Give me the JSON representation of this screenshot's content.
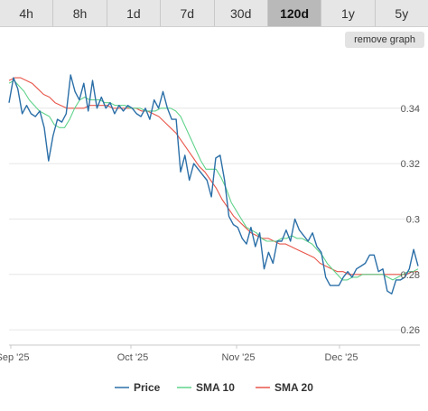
{
  "tabs": [
    {
      "label": "4h"
    },
    {
      "label": "8h"
    },
    {
      "label": "1d"
    },
    {
      "label": "7d"
    },
    {
      "label": "30d"
    },
    {
      "label": "120d"
    },
    {
      "label": "1y"
    },
    {
      "label": "5y"
    }
  ],
  "active_tab": "120d",
  "remove_graph_label": "remove graph",
  "chart_data": {
    "type": "line",
    "x_ticks": [
      "Sep '25",
      "Oct '25",
      "Nov '25",
      "Dec '25"
    ],
    "y_ticks": [
      "0.34",
      "0.32",
      "0.3",
      "0.28",
      "0.26"
    ],
    "ylim": [
      0.2545,
      0.3595
    ],
    "grid": true,
    "legend_position": "bottom",
    "colors": {
      "price": "#2b6fa8",
      "sma10": "#5fd28a",
      "sma20": "#e8564a"
    },
    "series": [
      {
        "name": "Price",
        "values": [
          0.342,
          0.351,
          0.347,
          0.338,
          0.341,
          0.338,
          0.337,
          0.339,
          0.333,
          0.321,
          0.33,
          0.336,
          0.335,
          0.338,
          0.352,
          0.346,
          0.343,
          0.349,
          0.339,
          0.35,
          0.34,
          0.344,
          0.34,
          0.342,
          0.338,
          0.341,
          0.339,
          0.341,
          0.34,
          0.338,
          0.337,
          0.34,
          0.336,
          0.343,
          0.34,
          0.346,
          0.34,
          0.336,
          0.336,
          0.317,
          0.323,
          0.314,
          0.32,
          0.318,
          0.316,
          0.314,
          0.308,
          0.322,
          0.323,
          0.314,
          0.301,
          0.298,
          0.297,
          0.293,
          0.291,
          0.297,
          0.29,
          0.295,
          0.282,
          0.288,
          0.284,
          0.292,
          0.292,
          0.296,
          0.292,
          0.3,
          0.296,
          0.294,
          0.292,
          0.295,
          0.29,
          0.288,
          0.279,
          0.276,
          0.276,
          0.276,
          0.279,
          0.281,
          0.279,
          0.282,
          0.283,
          0.284,
          0.287,
          0.287,
          0.281,
          0.282,
          0.274,
          0.273,
          0.278,
          0.278,
          0.279,
          0.282,
          0.289,
          0.283
        ]
      },
      {
        "name": "SMA 10",
        "values": [
          0.349,
          0.35,
          0.348,
          0.346,
          0.343,
          0.341,
          0.339,
          0.338,
          0.337,
          0.334,
          0.333,
          0.333,
          0.336,
          0.34,
          0.343,
          0.344,
          0.343,
          0.343,
          0.343,
          0.342,
          0.342,
          0.341,
          0.341,
          0.341,
          0.34,
          0.34,
          0.34,
          0.339,
          0.339,
          0.339,
          0.34,
          0.34,
          0.34,
          0.339,
          0.337,
          0.333,
          0.329,
          0.325,
          0.321,
          0.318,
          0.318,
          0.318,
          0.315,
          0.311,
          0.306,
          0.303,
          0.3,
          0.297,
          0.296,
          0.295,
          0.293,
          0.292,
          0.292,
          0.292,
          0.293,
          0.293,
          0.294,
          0.293,
          0.293,
          0.292,
          0.291,
          0.289,
          0.287,
          0.284,
          0.282,
          0.28,
          0.278,
          0.278,
          0.279,
          0.279,
          0.28,
          0.28,
          0.28,
          0.28,
          0.28,
          0.279,
          0.278,
          0.279,
          0.28,
          0.281,
          0.281,
          0.282
        ]
      },
      {
        "name": "SMA 20",
        "values": [
          0.35,
          0.351,
          0.351,
          0.35,
          0.349,
          0.347,
          0.345,
          0.344,
          0.342,
          0.341,
          0.34,
          0.34,
          0.34,
          0.34,
          0.341,
          0.341,
          0.341,
          0.341,
          0.34,
          0.34,
          0.34,
          0.34,
          0.34,
          0.339,
          0.339,
          0.338,
          0.337,
          0.335,
          0.333,
          0.331,
          0.328,
          0.325,
          0.322,
          0.319,
          0.317,
          0.314,
          0.311,
          0.307,
          0.304,
          0.301,
          0.299,
          0.297,
          0.295,
          0.294,
          0.293,
          0.293,
          0.292,
          0.291,
          0.291,
          0.29,
          0.289,
          0.288,
          0.287,
          0.286,
          0.284,
          0.283,
          0.282,
          0.281,
          0.281,
          0.28,
          0.28,
          0.28,
          0.28,
          0.28,
          0.28,
          0.28,
          0.28,
          0.28,
          0.28,
          0.28,
          0.281,
          0.281
        ]
      }
    ]
  }
}
